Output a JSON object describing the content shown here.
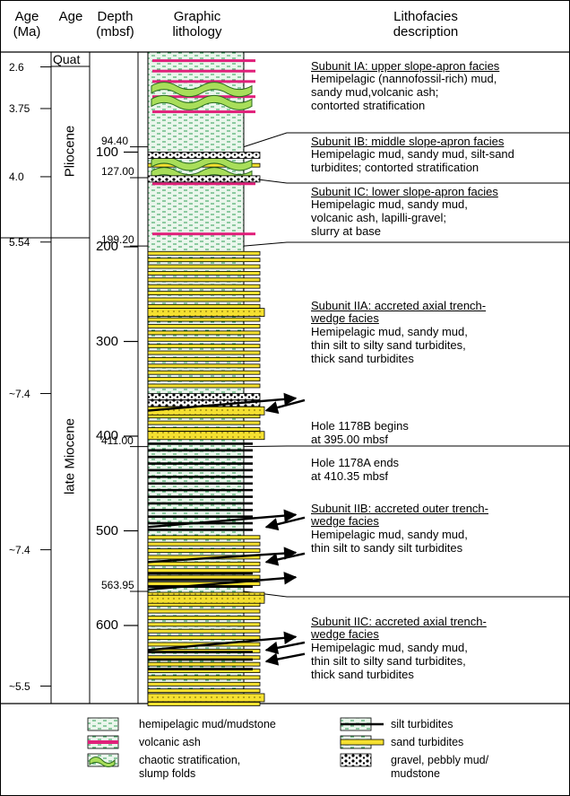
{
  "headers": {
    "age_ma": [
      "Age",
      "(Ma)"
    ],
    "age": [
      "Age"
    ],
    "depth": [
      "Depth",
      "(mbsf)"
    ],
    "lithology": [
      "Graphic",
      "lithology"
    ],
    "description": [
      "Lithofacies",
      "description"
    ]
  },
  "ages_ma": [
    {
      "label": "2.6",
      "depth": 10
    },
    {
      "label": "3.75",
      "depth": 54
    },
    {
      "label": "4.0",
      "depth": 126
    },
    {
      "label": "5.54",
      "depth": 195
    },
    {
      "label": "~7.4",
      "depth": 355
    },
    {
      "label": "~7.4",
      "depth": 520
    },
    {
      "label": "~5.5",
      "depth": 664
    }
  ],
  "epochs": [
    {
      "label": "Quat",
      "from": -5,
      "to": 5,
      "rotate": false
    },
    {
      "label": "Pliocene",
      "from": 5,
      "to": 195,
      "rotate": true
    },
    {
      "label": "late Miocene",
      "from": 195,
      "to": 690,
      "rotate": true
    }
  ],
  "depth_ticks": [
    {
      "label": "100",
      "depth": 100
    },
    {
      "label": "200",
      "depth": 200
    },
    {
      "label": "300",
      "depth": 300
    },
    {
      "label": "400",
      "depth": 400
    },
    {
      "label": "500",
      "depth": 500
    },
    {
      "label": "600",
      "depth": 600
    }
  ],
  "boundaries": [
    {
      "label": "94.40",
      "depth": 94.4
    },
    {
      "label": "127.00",
      "depth": 127.0
    },
    {
      "label": "199.20",
      "depth": 199.2
    },
    {
      "label": "411.00",
      "depth": 411.0
    },
    {
      "label": "563.95",
      "depth": 563.95
    }
  ],
  "units": [
    {
      "title": "Subunit IA: upper slope-apron facies",
      "lines": [
        "Hemipelagic (nannofossil-rich) mud,",
        "sandy mud,volcanic ash;",
        "contorted stratification"
      ]
    },
    {
      "title": "Subunit IB: middle slope-apron facies",
      "lines": [
        "Hemipelagic mud, sandy mud, silt-sand",
        "turbidites; contorted stratification"
      ]
    },
    {
      "title": "Subunit IC: lower slope-apron facies",
      "lines": [
        "Hemipelagic mud, sandy mud,",
        "volcanic ash, lapilli-gravel;",
        "slurry at base"
      ]
    },
    {
      "title": "Subunit IIA: accreted axial trench-",
      "lines": [
        "wedge facies",
        "Hemipelagic mud, sandy mud,",
        "thin silt to silty sand turbidites,",
        "thick sand turbidites"
      ]
    },
    {
      "title": "",
      "lines": [
        "Hole 1178B begins",
        "at 395.00 mbsf"
      ]
    },
    {
      "title": "",
      "lines": [
        "Hole 1178A ends",
        "at 410.35 mbsf"
      ]
    },
    {
      "title": "Subunit IIB: accreted outer trench-",
      "lines": [
        "wedge facies",
        "Hemipelagic mud, sandy mud,",
        "thin silt to sandy silt turbidites"
      ]
    },
    {
      "title": "Subunit IIC: accreted axial trench-",
      "lines": [
        "wedge facies",
        "Hemipelagic mud, sandy mud,",
        "thin silt to silty sand turbidites,",
        "thick sand turbidites"
      ]
    }
  ],
  "legend": [
    {
      "pattern": "mud",
      "lines": [
        "hemipelagic mud/mudstone"
      ]
    },
    {
      "pattern": "ash",
      "lines": [
        "volcanic ash"
      ]
    },
    {
      "pattern": "fold",
      "lines": [
        "chaotic stratification,",
        "slump folds"
      ]
    },
    {
      "pattern": "silt",
      "lines": [
        "silt turbidites"
      ]
    },
    {
      "pattern": "sand",
      "lines": [
        "sand turbidites"
      ]
    },
    {
      "pattern": "gravel",
      "lines": [
        "gravel, pebbly mud/",
        "mudstone"
      ]
    }
  ],
  "lithology": {
    "ash_depths": [
      2,
      13,
      24,
      40,
      56,
      132,
      185
    ],
    "fold_depths": [
      30,
      44,
      108,
      120
    ],
    "gravel_depths": [
      100,
      125,
      355,
      362
    ],
    "sand_depths": [
      112,
      205,
      212,
      219,
      226,
      233,
      240,
      247,
      254,
      261,
      268,
      275,
      282,
      289,
      296,
      303,
      310,
      317,
      324,
      331,
      338,
      345,
      370,
      377,
      384,
      391,
      398,
      505,
      512,
      519,
      526,
      533,
      540,
      547,
      554,
      576,
      583,
      590,
      597,
      604,
      611,
      618,
      625,
      632,
      639,
      646,
      653,
      660,
      667,
      674,
      681
    ],
    "thick_sand_depths": [
      265,
      369,
      395,
      565,
      568,
      672
    ],
    "silt_depths": [
      408,
      415,
      422,
      429,
      436,
      443,
      450,
      457,
      464,
      471,
      478,
      485,
      492,
      499,
      545,
      552,
      559,
      628,
      636,
      646
    ],
    "colors": {
      "sand": "#f5e030",
      "ash": "#e0207a",
      "mud_bg": "#eaf6ec",
      "mud_dash": "#2e9e55",
      "fold": "#a8de5a"
    }
  },
  "arrows": [
    {
      "tip_depth": 360,
      "tail_depth": 373,
      "direction": "right"
    },
    {
      "tip_depth": 373,
      "tail_depth": 362,
      "direction": "left"
    },
    {
      "tip_depth": 483,
      "tail_depth": 496,
      "direction": "right"
    },
    {
      "tip_depth": 496,
      "tail_depth": 486,
      "direction": "left"
    },
    {
      "tip_depth": 523,
      "tail_depth": 533,
      "direction": "right"
    },
    {
      "tip_depth": 533,
      "tail_depth": 524,
      "direction": "left"
    },
    {
      "tip_depth": 549,
      "tail_depth": 562,
      "direction": "right"
    },
    {
      "tip_depth": 612,
      "tail_depth": 626,
      "direction": "right"
    },
    {
      "tip_depth": 626,
      "tail_depth": 618,
      "direction": "left"
    },
    {
      "tip_depth": 638,
      "tail_depth": 630,
      "direction": "left"
    }
  ]
}
